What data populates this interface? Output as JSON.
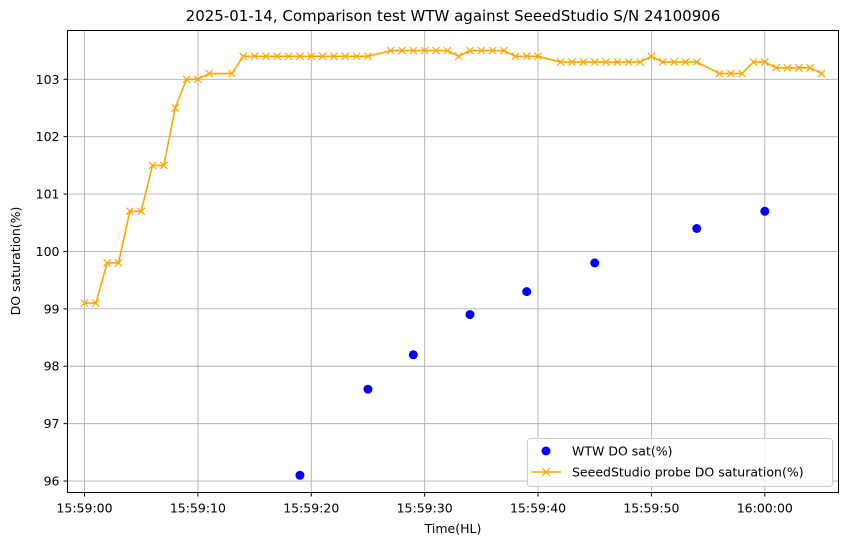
{
  "chart_data": {
    "type": "line",
    "title": "2025-01-14, Comparison test WTW against SeeedStudio S/N 24100906",
    "xlabel": "Time(HL)",
    "ylabel": "DO saturation(%)",
    "xlim": [
      "15:58:58.5",
      "16:00:06.5"
    ],
    "ylim": [
      95.8,
      103.85
    ],
    "xticks": [
      "15:59:00",
      "15:59:10",
      "15:59:20",
      "15:59:30",
      "15:59:40",
      "15:59:50",
      "16:00:00"
    ],
    "yticks": [
      96,
      97,
      98,
      99,
      100,
      101,
      102,
      103
    ],
    "grid": true,
    "legend_position": "lower-right",
    "series": [
      {
        "name": "WTW DO sat(%)",
        "kind": "scatter",
        "marker": "circle",
        "color": "#0000ff",
        "points": [
          [
            "15:59:19",
            96.1
          ],
          [
            "15:59:25",
            97.6
          ],
          [
            "15:59:29",
            98.2
          ],
          [
            "15:59:34",
            98.9
          ],
          [
            "15:59:39",
            99.3
          ],
          [
            "15:59:45",
            99.8
          ],
          [
            "15:59:54",
            100.4
          ],
          [
            "16:00:00",
            100.7
          ]
        ]
      },
      {
        "name": "SeeedStudio probe DO saturation(%)",
        "kind": "line",
        "marker": "x",
        "color": "#ffa500",
        "points": [
          [
            "15:59:00",
            99.1
          ],
          [
            "15:59:01",
            99.1
          ],
          [
            "15:59:02",
            99.8
          ],
          [
            "15:59:03",
            99.8
          ],
          [
            "15:59:04",
            100.7
          ],
          [
            "15:59:05",
            100.7
          ],
          [
            "15:59:06",
            101.5
          ],
          [
            "15:59:07",
            101.5
          ],
          [
            "15:59:08",
            102.5
          ],
          [
            "15:59:09",
            103.0
          ],
          [
            "15:59:10",
            103.0
          ],
          [
            "15:59:11",
            103.1
          ],
          [
            "15:59:13",
            103.1
          ],
          [
            "15:59:14",
            103.4
          ],
          [
            "15:59:15",
            103.4
          ],
          [
            "15:59:16",
            103.4
          ],
          [
            "15:59:17",
            103.4
          ],
          [
            "15:59:18",
            103.4
          ],
          [
            "15:59:19",
            103.4
          ],
          [
            "15:59:20",
            103.4
          ],
          [
            "15:59:21",
            103.4
          ],
          [
            "15:59:22",
            103.4
          ],
          [
            "15:59:23",
            103.4
          ],
          [
            "15:59:24",
            103.4
          ],
          [
            "15:59:25",
            103.4
          ],
          [
            "15:59:27",
            103.5
          ],
          [
            "15:59:28",
            103.5
          ],
          [
            "15:59:29",
            103.5
          ],
          [
            "15:59:30",
            103.5
          ],
          [
            "15:59:31",
            103.5
          ],
          [
            "15:59:32",
            103.5
          ],
          [
            "15:59:33",
            103.4
          ],
          [
            "15:59:34",
            103.5
          ],
          [
            "15:59:35",
            103.5
          ],
          [
            "15:59:36",
            103.5
          ],
          [
            "15:59:37",
            103.5
          ],
          [
            "15:59:38",
            103.4
          ],
          [
            "15:59:39",
            103.4
          ],
          [
            "15:59:40",
            103.4
          ],
          [
            "15:59:42",
            103.3
          ],
          [
            "15:59:43",
            103.3
          ],
          [
            "15:59:44",
            103.3
          ],
          [
            "15:59:45",
            103.3
          ],
          [
            "15:59:46",
            103.3
          ],
          [
            "15:59:47",
            103.3
          ],
          [
            "15:59:48",
            103.3
          ],
          [
            "15:59:49",
            103.3
          ],
          [
            "15:59:50",
            103.4
          ],
          [
            "15:59:51",
            103.3
          ],
          [
            "15:59:52",
            103.3
          ],
          [
            "15:59:53",
            103.3
          ],
          [
            "15:59:54",
            103.3
          ],
          [
            "15:59:56",
            103.1
          ],
          [
            "15:59:57",
            103.1
          ],
          [
            "15:59:58",
            103.1
          ],
          [
            "15:59:59",
            103.3
          ],
          [
            "16:00:00",
            103.3
          ],
          [
            "16:00:01",
            103.2
          ],
          [
            "16:00:02",
            103.2
          ],
          [
            "16:00:03",
            103.2
          ],
          [
            "16:00:04",
            103.2
          ],
          [
            "16:00:05",
            103.1
          ]
        ]
      }
    ]
  }
}
